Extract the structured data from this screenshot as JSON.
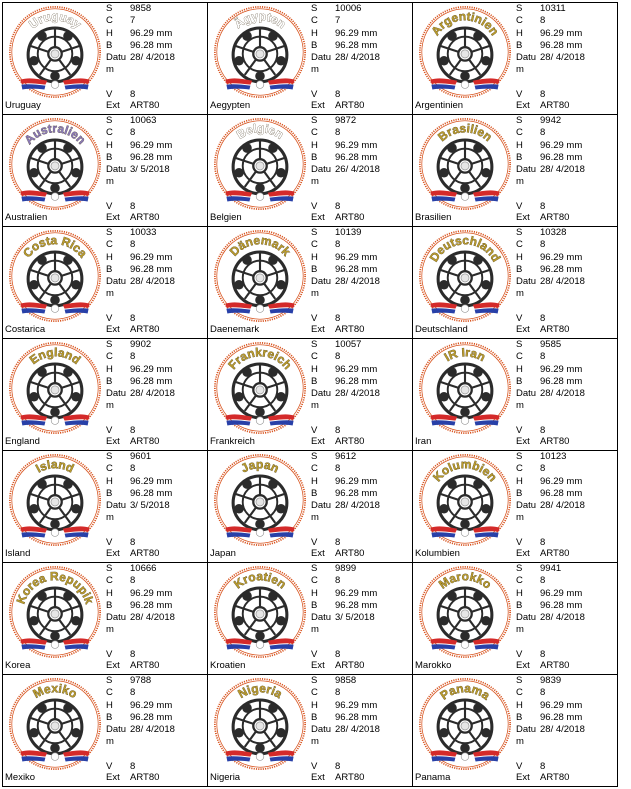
{
  "labels": {
    "stitches": "S",
    "colors": "C",
    "height": "H",
    "width": "B",
    "date": "Datu\nm",
    "version": "V",
    "ext": "Ext"
  },
  "colors": {
    "ring": "#d8541f",
    "ball_dark": "#2b2b2b",
    "flag_red": "#d42a2a",
    "flag_blue": "#2840a8",
    "title_default": "#b79a2e",
    "title_purple": "#8a7ab8"
  },
  "designs": [
    {
      "title": "Uruguay",
      "title_color": "#ffffff",
      "name": "Uruguay",
      "stitches": "9858",
      "colors": "7",
      "height": "96.29 mm",
      "width": "96.28 mm",
      "date": "28/ 4/2018",
      "version": "8",
      "ext": "ART80"
    },
    {
      "title": "Ägypten",
      "title_color": "#ffffff",
      "name": "Aegypten",
      "stitches": "10006",
      "colors": "7",
      "height": "96.29 mm",
      "width": "96.28 mm",
      "date": "28/ 4/2018",
      "version": "8",
      "ext": "ART80"
    },
    {
      "title": "Argentinien",
      "title_color": "#b79a2e",
      "name": "Argentinien",
      "stitches": "10311",
      "colors": "8",
      "height": "96.29 mm",
      "width": "96.28 mm",
      "date": "28/ 4/2018",
      "version": "8",
      "ext": "ART80"
    },
    {
      "title": "Australien",
      "title_color": "#8a7ab8",
      "name": "Australien",
      "stitches": "10063",
      "colors": "8",
      "height": "96.29 mm",
      "width": "96.28 mm",
      "date": "3/ 5/2018",
      "version": "8",
      "ext": "ART80"
    },
    {
      "title": "Belgien",
      "title_color": "#ffffff",
      "name": "Belgien",
      "stitches": "9872",
      "colors": "8",
      "height": "96.29 mm",
      "width": "96.28 mm",
      "date": "26/ 4/2018",
      "version": "8",
      "ext": "ART80"
    },
    {
      "title": "Brasilien",
      "title_color": "#b79a2e",
      "name": "Brasilien",
      "stitches": "9942",
      "colors": "8",
      "height": "96.29 mm",
      "width": "96.28 mm",
      "date": "28/ 4/2018",
      "version": "8",
      "ext": "ART80"
    },
    {
      "title": "Costa Rica",
      "title_color": "#b79a2e",
      "name": "Costarica",
      "stitches": "10033",
      "colors": "8",
      "height": "96.29 mm",
      "width": "96.28 mm",
      "date": "28/ 4/2018",
      "version": "8",
      "ext": "ART80"
    },
    {
      "title": "Dänemark",
      "title_color": "#b79a2e",
      "name": "Daenemark",
      "stitches": "10139",
      "colors": "8",
      "height": "96.29 mm",
      "width": "96.28 mm",
      "date": "28/ 4/2018",
      "version": "8",
      "ext": "ART80"
    },
    {
      "title": "Deutschland",
      "title_color": "#b79a2e",
      "name": "Deutschland",
      "stitches": "10328",
      "colors": "8",
      "height": "96.29 mm",
      "width": "96.28 mm",
      "date": "28/ 4/2018",
      "version": "8",
      "ext": "ART80"
    },
    {
      "title": "England",
      "title_color": "#b79a2e",
      "name": "England",
      "stitches": "9902",
      "colors": "8",
      "height": "96.29 mm",
      "width": "96.28 mm",
      "date": "28/ 4/2018",
      "version": "8",
      "ext": "ART80"
    },
    {
      "title": "Frankreich",
      "title_color": "#b79a2e",
      "name": "Frankreich",
      "stitches": "10057",
      "colors": "8",
      "height": "96.29 mm",
      "width": "96.28 mm",
      "date": "28/ 4/2018",
      "version": "8",
      "ext": "ART80"
    },
    {
      "title": "IR Iran",
      "title_color": "#b79a2e",
      "name": "Iran",
      "stitches": "9585",
      "colors": "8",
      "height": "96.29 mm",
      "width": "96.28 mm",
      "date": "28/ 4/2018",
      "version": "8",
      "ext": "ART80"
    },
    {
      "title": "Island",
      "title_color": "#b79a2e",
      "name": "Island",
      "stitches": "9601",
      "colors": "8",
      "height": "96.29 mm",
      "width": "96.28 mm",
      "date": "3/ 5/2018",
      "version": "8",
      "ext": "ART80"
    },
    {
      "title": "Japan",
      "title_color": "#b79a2e",
      "name": "Japan",
      "stitches": "9612",
      "colors": "8",
      "height": "96.29 mm",
      "width": "96.28 mm",
      "date": "28/ 4/2018",
      "version": "8",
      "ext": "ART80"
    },
    {
      "title": "Kolumbien",
      "title_color": "#b79a2e",
      "name": "Kolumbien",
      "stitches": "10123",
      "colors": "8",
      "height": "96.29 mm",
      "width": "96.28 mm",
      "date": "28/ 4/2018",
      "version": "8",
      "ext": "ART80"
    },
    {
      "title": "Korea Repupik",
      "title_color": "#b79a2e",
      "name": "Korea",
      "stitches": "10666",
      "colors": "8",
      "height": "96.29 mm",
      "width": "96.28 mm",
      "date": "28/ 4/2018",
      "version": "8",
      "ext": "ART80"
    },
    {
      "title": "Kroatien",
      "title_color": "#b79a2e",
      "name": "Kroatien",
      "stitches": "9899",
      "colors": "8",
      "height": "96.29 mm",
      "width": "96.28 mm",
      "date": "3/ 5/2018",
      "version": "8",
      "ext": "ART80"
    },
    {
      "title": "Marokko",
      "title_color": "#b79a2e",
      "name": "Marokko",
      "stitches": "9941",
      "colors": "8",
      "height": "96.29 mm",
      "width": "96.28 mm",
      "date": "28/ 4/2018",
      "version": "8",
      "ext": "ART80"
    },
    {
      "title": "Mexiko",
      "title_color": "#b79a2e",
      "name": "Mexiko",
      "stitches": "9788",
      "colors": "8",
      "height": "96.29 mm",
      "width": "96.28 mm",
      "date": "28/ 4/2018",
      "version": "8",
      "ext": "ART80"
    },
    {
      "title": "Nigeria",
      "title_color": "#b79a2e",
      "name": "Nigeria",
      "stitches": "9858",
      "colors": "8",
      "height": "96.29 mm",
      "width": "96.28 mm",
      "date": "28/ 4/2018",
      "version": "8",
      "ext": "ART80"
    },
    {
      "title": "Panama",
      "title_color": "#b79a2e",
      "name": "Panama",
      "stitches": "9839",
      "colors": "8",
      "height": "96.29 mm",
      "width": "96.28 mm",
      "date": "28/ 4/2018",
      "version": "8",
      "ext": "ART80"
    }
  ]
}
